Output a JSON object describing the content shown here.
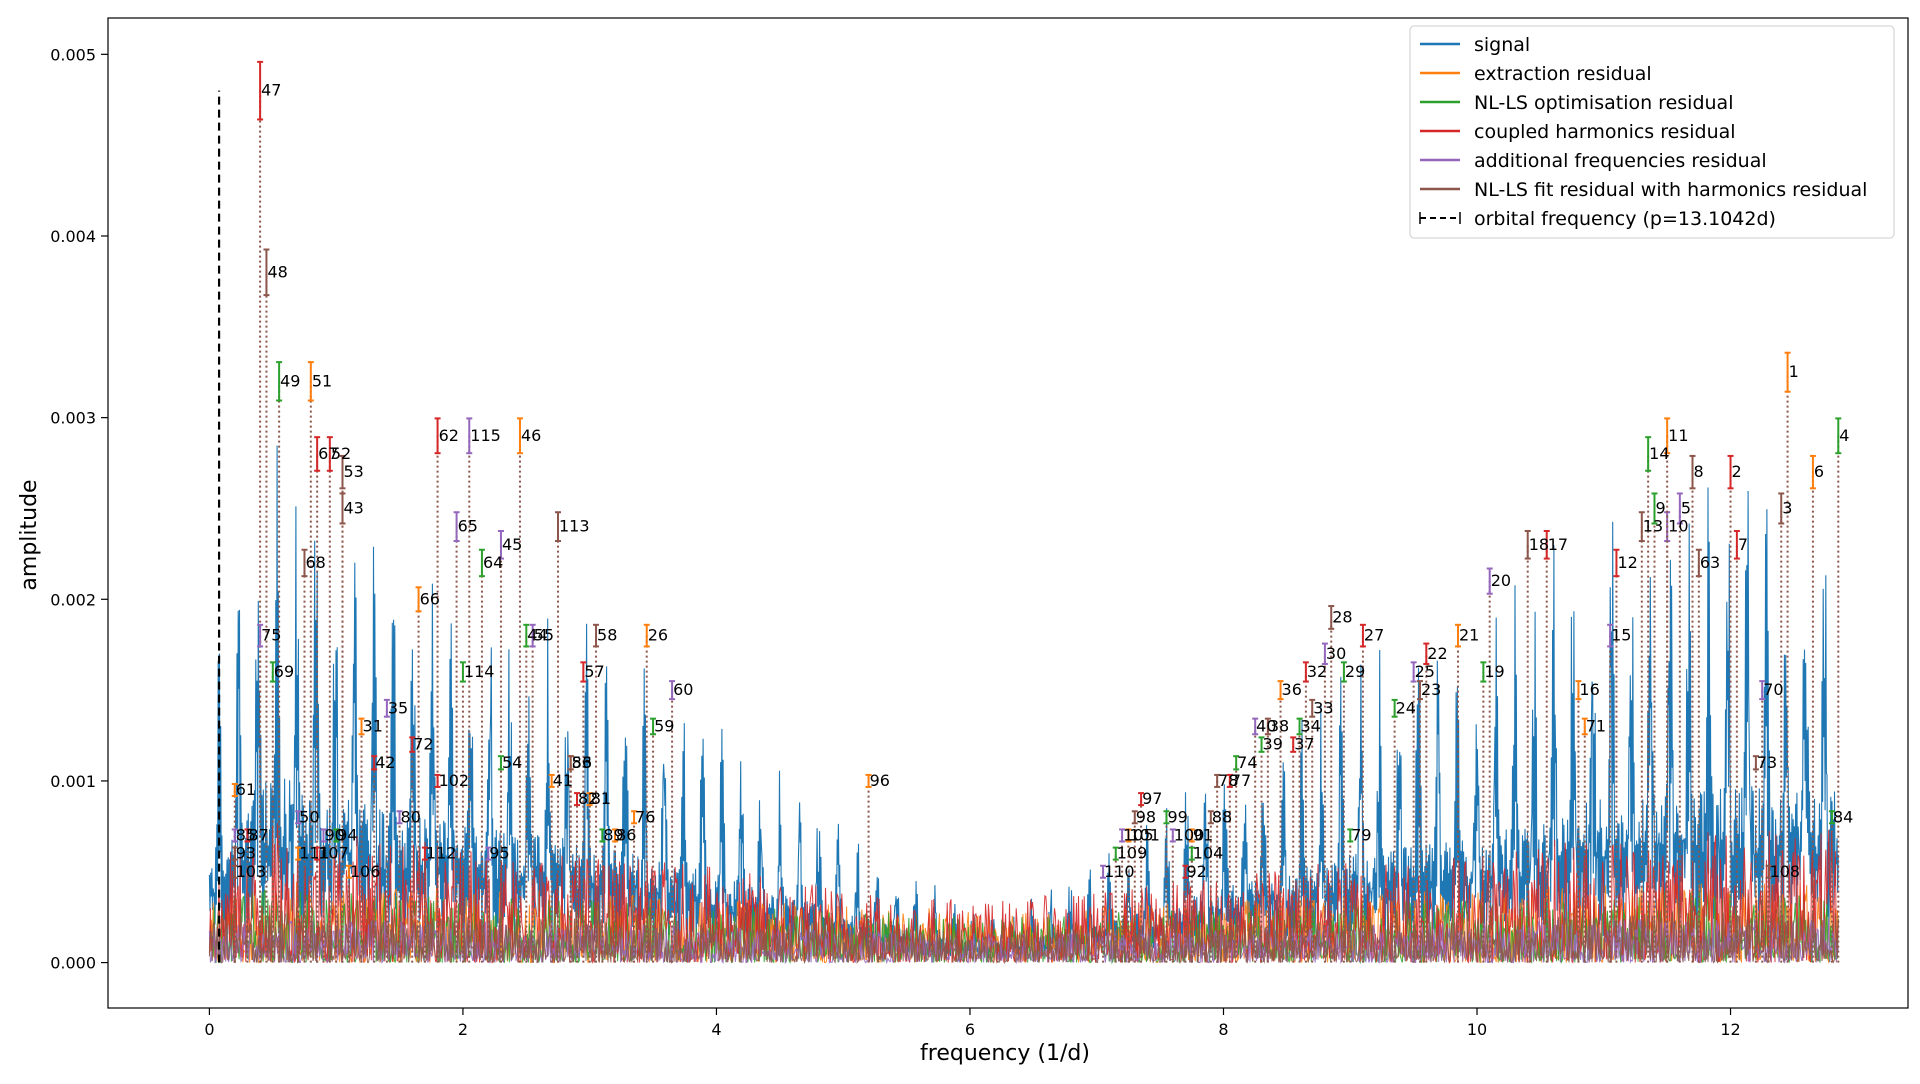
{
  "chart_data": {
    "type": "line",
    "title": "",
    "xlabel": "frequency (1/d)",
    "ylabel": "amplitude",
    "xlim": [
      -0.8,
      13.4
    ],
    "ylim": [
      -0.00025,
      0.0052
    ],
    "xticks": [
      0,
      2,
      4,
      6,
      8,
      10,
      12
    ],
    "xtick_labels": [
      "0",
      "2",
      "4",
      "6",
      "8",
      "10",
      "12"
    ],
    "yticks": [
      0.0,
      0.001,
      0.002,
      0.003,
      0.004,
      0.005
    ],
    "ytick_labels": [
      "0.000",
      "0.001",
      "0.002",
      "0.003",
      "0.004",
      "0.005"
    ],
    "grid": false,
    "legend_position": "top-right",
    "colors": {
      "signal": "#1f77b4",
      "extraction": "#ff7f0e",
      "nlls": "#2ca02c",
      "coupled": "#d62728",
      "additional": "#9467bd",
      "nlls_harm": "#8c564b",
      "orbital": "#000000"
    },
    "series": [
      {
        "name": "signal",
        "description_style": "solid line",
        "envelope": {
          "x": [
            0.0,
            0.5,
            1.0,
            2.0,
            3.0,
            4.0,
            5.0,
            5.8,
            6.3,
            7.0,
            8.0,
            9.0,
            10.0,
            11.0,
            12.0,
            12.85
          ],
          "y": [
            0.0016,
            0.003,
            0.0026,
            0.0022,
            0.0019,
            0.0014,
            0.0008,
            0.0004,
            0.0003,
            0.0006,
            0.0012,
            0.0017,
            0.002,
            0.0026,
            0.0028,
            0.0027
          ]
        }
      },
      {
        "name": "extraction residual"
      },
      {
        "name": "NL-LS optimisation residual"
      },
      {
        "name": "coupled harmonics residual"
      },
      {
        "name": "additional frequencies residual"
      },
      {
        "name": "NL-LS fit residual with harmonics residual"
      }
    ],
    "orbital_frequency": {
      "label": "orbital frequency (p=13.1042d)",
      "x": 0.0763,
      "y_top": 0.0048
    },
    "frequencies": [
      {
        "n": "1",
        "x": 12.45,
        "y": 0.00325
      },
      {
        "n": "2",
        "x": 12.0,
        "y": 0.0027
      },
      {
        "n": "3",
        "x": 12.4,
        "y": 0.0025
      },
      {
        "n": "4",
        "x": 12.85,
        "y": 0.0029
      },
      {
        "n": "5",
        "x": 11.6,
        "y": 0.0025
      },
      {
        "n": "6",
        "x": 12.65,
        "y": 0.0027
      },
      {
        "n": "7",
        "x": 12.05,
        "y": 0.0023
      },
      {
        "n": "8",
        "x": 11.7,
        "y": 0.0027
      },
      {
        "n": "9",
        "x": 11.4,
        "y": 0.0025
      },
      {
        "n": "10",
        "x": 11.5,
        "y": 0.0024
      },
      {
        "n": "11",
        "x": 11.5,
        "y": 0.0029
      },
      {
        "n": "12",
        "x": 11.1,
        "y": 0.0022
      },
      {
        "n": "13",
        "x": 11.3,
        "y": 0.0024
      },
      {
        "n": "14",
        "x": 11.35,
        "y": 0.0028
      },
      {
        "n": "15",
        "x": 11.05,
        "y": 0.0018
      },
      {
        "n": "16",
        "x": 10.8,
        "y": 0.0015
      },
      {
        "n": "17",
        "x": 10.55,
        "y": 0.0023
      },
      {
        "n": "18",
        "x": 10.4,
        "y": 0.0023
      },
      {
        "n": "19",
        "x": 10.05,
        "y": 0.0016
      },
      {
        "n": "20",
        "x": 10.1,
        "y": 0.0021
      },
      {
        "n": "21",
        "x": 9.85,
        "y": 0.0018
      },
      {
        "n": "22",
        "x": 9.6,
        "y": 0.0017
      },
      {
        "n": "23",
        "x": 9.55,
        "y": 0.0015
      },
      {
        "n": "24",
        "x": 9.35,
        "y": 0.0014
      },
      {
        "n": "25",
        "x": 9.5,
        "y": 0.0016
      },
      {
        "n": "26",
        "x": 3.45,
        "y": 0.0018
      },
      {
        "n": "27",
        "x": 9.1,
        "y": 0.0018
      },
      {
        "n": "28",
        "x": 8.85,
        "y": 0.0019
      },
      {
        "n": "29",
        "x": 8.95,
        "y": 0.0016
      },
      {
        "n": "30",
        "x": 8.8,
        "y": 0.0017
      },
      {
        "n": "31",
        "x": 1.2,
        "y": 0.0013
      },
      {
        "n": "32",
        "x": 8.65,
        "y": 0.0016
      },
      {
        "n": "33",
        "x": 8.7,
        "y": 0.0014
      },
      {
        "n": "34",
        "x": 8.6,
        "y": 0.0013
      },
      {
        "n": "35",
        "x": 1.4,
        "y": 0.0014
      },
      {
        "n": "36",
        "x": 8.45,
        "y": 0.0015
      },
      {
        "n": "37",
        "x": 8.55,
        "y": 0.0012
      },
      {
        "n": "38",
        "x": 8.35,
        "y": 0.0013
      },
      {
        "n": "39",
        "x": 8.3,
        "y": 0.0012
      },
      {
        "n": "40",
        "x": 8.25,
        "y": 0.0013
      },
      {
        "n": "41",
        "x": 2.7,
        "y": 0.001
      },
      {
        "n": "42",
        "x": 1.3,
        "y": 0.0011
      },
      {
        "n": "43",
        "x": 1.05,
        "y": 0.0025
      },
      {
        "n": "44",
        "x": 2.5,
        "y": 0.0018
      },
      {
        "n": "45",
        "x": 2.3,
        "y": 0.0023
      },
      {
        "n": "46",
        "x": 2.45,
        "y": 0.0029
      },
      {
        "n": "47",
        "x": 0.4,
        "y": 0.0048
      },
      {
        "n": "48",
        "x": 0.45,
        "y": 0.0038
      },
      {
        "n": "49",
        "x": 0.55,
        "y": 0.0032
      },
      {
        "n": "50",
        "x": 0.7,
        "y": 0.0008
      },
      {
        "n": "51",
        "x": 0.8,
        "y": 0.0032
      },
      {
        "n": "52",
        "x": 0.95,
        "y": 0.0028
      },
      {
        "n": "53",
        "x": 1.05,
        "y": 0.0027
      },
      {
        "n": "54",
        "x": 2.3,
        "y": 0.0011
      },
      {
        "n": "55",
        "x": 2.55,
        "y": 0.0018
      },
      {
        "n": "56",
        "x": 2.85,
        "y": 0.0011
      },
      {
        "n": "57",
        "x": 2.95,
        "y": 0.0016
      },
      {
        "n": "58",
        "x": 3.05,
        "y": 0.0018
      },
      {
        "n": "59",
        "x": 3.5,
        "y": 0.0013
      },
      {
        "n": "60",
        "x": 3.65,
        "y": 0.0015
      },
      {
        "n": "61",
        "x": 0.2,
        "y": 0.00095
      },
      {
        "n": "62",
        "x": 1.8,
        "y": 0.0029
      },
      {
        "n": "63",
        "x": 11.75,
        "y": 0.0022
      },
      {
        "n": "64",
        "x": 2.15,
        "y": 0.0022
      },
      {
        "n": "65",
        "x": 1.95,
        "y": 0.0024
      },
      {
        "n": "66",
        "x": 1.65,
        "y": 0.002
      },
      {
        "n": "67",
        "x": 0.85,
        "y": 0.0028
      },
      {
        "n": "68",
        "x": 0.75,
        "y": 0.0022
      },
      {
        "n": "69",
        "x": 0.5,
        "y": 0.0016
      },
      {
        "n": "70",
        "x": 12.25,
        "y": 0.0015
      },
      {
        "n": "71",
        "x": 10.85,
        "y": 0.0013
      },
      {
        "n": "72",
        "x": 1.6,
        "y": 0.0012
      },
      {
        "n": "73",
        "x": 12.2,
        "y": 0.0011
      },
      {
        "n": "74",
        "x": 8.1,
        "y": 0.0011
      },
      {
        "n": "75",
        "x": 0.4,
        "y": 0.0018
      },
      {
        "n": "76",
        "x": 3.35,
        "y": 0.0008
      },
      {
        "n": "77",
        "x": 8.05,
        "y": 0.001
      },
      {
        "n": "78",
        "x": 7.95,
        "y": 0.001
      },
      {
        "n": "79",
        "x": 9.0,
        "y": 0.0007
      },
      {
        "n": "80",
        "x": 1.5,
        "y": 0.0008
      },
      {
        "n": "81",
        "x": 3.0,
        "y": 0.0009
      },
      {
        "n": "82",
        "x": 2.9,
        "y": 0.0009
      },
      {
        "n": "83",
        "x": 2.85,
        "y": 0.0011
      },
      {
        "n": "84",
        "x": 12.8,
        "y": 0.0008
      },
      {
        "n": "85",
        "x": 0.2,
        "y": 0.0007
      },
      {
        "n": "86",
        "x": 3.2,
        "y": 0.0007
      },
      {
        "n": "87",
        "x": 0.3,
        "y": 0.0007
      },
      {
        "n": "88",
        "x": 7.9,
        "y": 0.0008
      },
      {
        "n": "89",
        "x": 3.1,
        "y": 0.0007
      },
      {
        "n": "90",
        "x": 0.9,
        "y": 0.0007
      },
      {
        "n": "91",
        "x": 7.75,
        "y": 0.0007
      },
      {
        "n": "92",
        "x": 7.7,
        "y": 0.0005
      },
      {
        "n": "93",
        "x": 0.2,
        "y": 0.0006
      },
      {
        "n": "94",
        "x": 1.0,
        "y": 0.0007
      },
      {
        "n": "95",
        "x": 2.2,
        "y": 0.0006
      },
      {
        "n": "96",
        "x": 5.2,
        "y": 0.001
      },
      {
        "n": "97",
        "x": 7.35,
        "y": 0.0009
      },
      {
        "n": "98",
        "x": 7.3,
        "y": 0.0008
      },
      {
        "n": "99",
        "x": 7.55,
        "y": 0.0008
      },
      {
        "n": "100",
        "x": 7.6,
        "y": 0.0007
      },
      {
        "n": "101",
        "x": 7.25,
        "y": 0.0007
      },
      {
        "n": "102",
        "x": 1.8,
        "y": 0.001
      },
      {
        "n": "103",
        "x": 0.2,
        "y": 0.0005
      },
      {
        "n": "104",
        "x": 7.75,
        "y": 0.0006
      },
      {
        "n": "105",
        "x": 7.2,
        "y": 0.0007
      },
      {
        "n": "106",
        "x": 1.1,
        "y": 0.0005
      },
      {
        "n": "107",
        "x": 0.85,
        "y": 0.0006
      },
      {
        "n": "108",
        "x": 12.3,
        "y": 0.0005
      },
      {
        "n": "109",
        "x": 7.15,
        "y": 0.0006
      },
      {
        "n": "110",
        "x": 7.05,
        "y": 0.0005
      },
      {
        "n": "111",
        "x": 0.7,
        "y": 0.0006
      },
      {
        "n": "112",
        "x": 1.7,
        "y": 0.0006
      },
      {
        "n": "113",
        "x": 2.75,
        "y": 0.0024
      },
      {
        "n": "114",
        "x": 2.0,
        "y": 0.0016
      },
      {
        "n": "115",
        "x": 2.05,
        "y": 0.0029
      }
    ]
  }
}
